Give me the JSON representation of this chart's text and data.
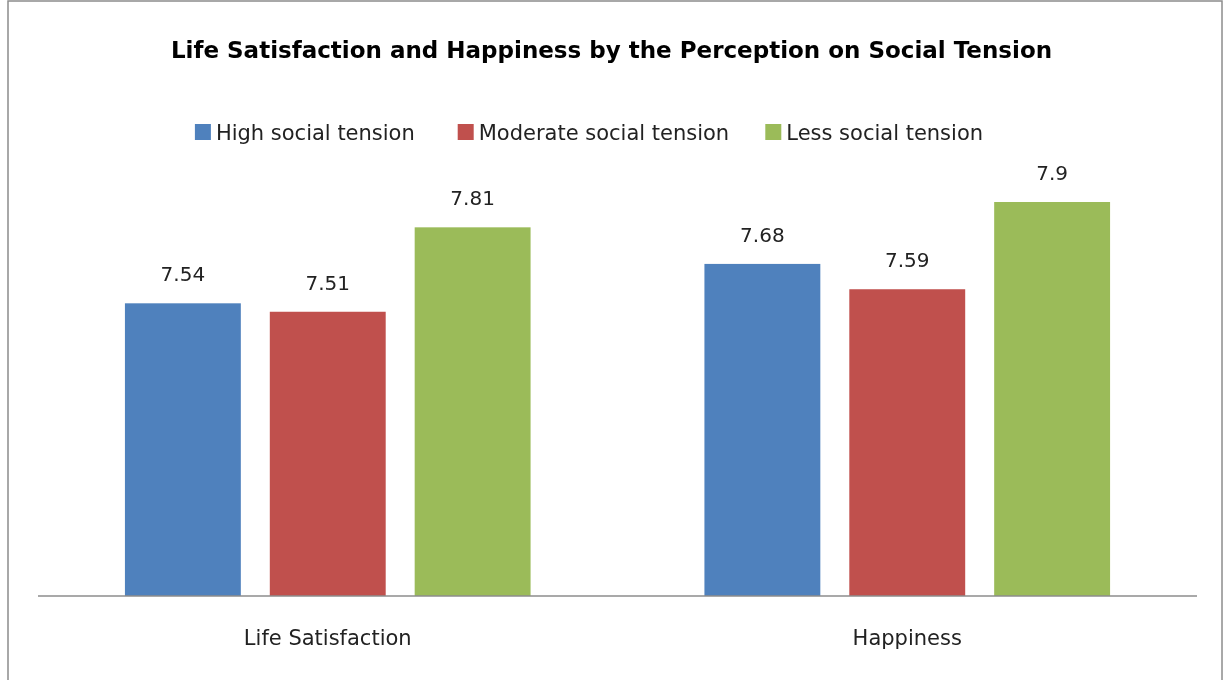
{
  "chart_data": {
    "type": "bar",
    "title": "Life Satisfaction and Happiness by the Perception on Social Tension",
    "categories": [
      "Life Satisfaction",
      "Happiness"
    ],
    "series": [
      {
        "name": "High social tension",
        "color": "#4f81bd",
        "values": [
          7.54,
          7.68
        ]
      },
      {
        "name": "Moderate social tension",
        "color": "#c0504d",
        "values": [
          7.51,
          7.59
        ]
      },
      {
        "name": "Less social tension",
        "color": "#9bbb59",
        "values": [
          7.81,
          7.9
        ]
      }
    ],
    "ylim": [
      6.5,
      7.9
    ],
    "data_labels": true,
    "legend": "top",
    "tick_labels": "x"
  }
}
